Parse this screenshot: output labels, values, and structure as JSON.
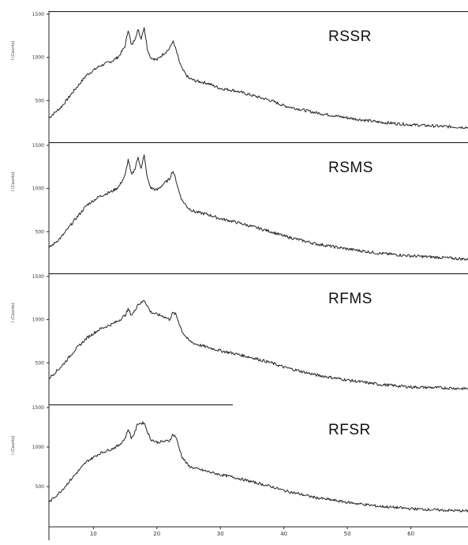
{
  "chart_data": [
    {
      "type": "line",
      "label": "RSSR",
      "ylabel": "I (Counts)",
      "yticks": [
        "1500",
        "1000",
        "500"
      ],
      "ylim": [
        0,
        1500
      ],
      "xlim": [
        3,
        69
      ],
      "x": [
        3,
        5,
        7,
        9,
        11,
        13,
        14,
        15,
        15.5,
        16,
        16.5,
        17,
        17.5,
        18,
        18.5,
        19,
        20,
        21,
        22,
        22.5,
        23,
        23.5,
        24,
        25,
        26,
        28,
        30,
        32,
        35,
        38,
        40,
        45,
        50,
        55,
        60,
        65,
        69
      ],
      "values": [
        300,
        430,
        620,
        800,
        900,
        960,
        1010,
        1130,
        1330,
        1130,
        1210,
        1320,
        1220,
        1350,
        1100,
        1000,
        970,
        1040,
        1100,
        1190,
        1090,
        960,
        860,
        760,
        730,
        700,
        640,
        620,
        560,
        500,
        440,
        360,
        300,
        250,
        220,
        200,
        190
      ]
    },
    {
      "type": "line",
      "label": "RSMS",
      "ylabel": "I (Counts)",
      "yticks": [
        "1500",
        "1000",
        "500"
      ],
      "ylim": [
        0,
        1500
      ],
      "x": [
        3,
        5,
        7,
        9,
        11,
        13,
        14,
        15,
        15.5,
        16,
        16.5,
        17,
        17.5,
        18,
        18.5,
        19,
        20,
        21,
        22,
        22.5,
        23,
        23.5,
        24,
        25,
        26,
        28,
        30,
        32,
        35,
        38,
        40,
        45,
        50,
        55,
        60,
        65,
        69
      ],
      "values": [
        310,
        440,
        630,
        810,
        910,
        970,
        1020,
        1150,
        1340,
        1150,
        1220,
        1360,
        1240,
        1380,
        1120,
        1010,
        980,
        1050,
        1110,
        1210,
        1100,
        960,
        860,
        770,
        730,
        700,
        650,
        620,
        560,
        500,
        450,
        360,
        300,
        250,
        220,
        200,
        180
      ]
    },
    {
      "type": "line",
      "label": "RFMS",
      "ylabel": "I (Counts)",
      "yticks": [
        "1500",
        "1000",
        "500"
      ],
      "ylim": [
        0,
        1500
      ],
      "x": [
        3,
        5,
        7,
        9,
        11,
        13,
        14,
        15,
        15.5,
        16,
        16.5,
        17,
        17.5,
        18,
        18.5,
        19,
        20,
        21,
        22,
        22.5,
        23,
        23.5,
        24,
        25,
        26,
        28,
        30,
        32,
        35,
        38,
        40,
        45,
        50,
        55,
        60,
        65,
        69
      ],
      "values": [
        320,
        460,
        640,
        790,
        890,
        950,
        990,
        1050,
        1120,
        1050,
        1100,
        1180,
        1190,
        1230,
        1160,
        1090,
        1060,
        1040,
        1000,
        1080,
        1060,
        960,
        860,
        760,
        720,
        680,
        640,
        610,
        560,
        500,
        450,
        360,
        300,
        250,
        220,
        210,
        200
      ]
    },
    {
      "type": "line",
      "label": "RFSR",
      "ylabel": "I (Counts)",
      "yticks": [
        "1500",
        "1000",
        "500"
      ],
      "ylim": [
        0,
        1500
      ],
      "xticks": [
        "10",
        "20",
        "30",
        "40",
        "50",
        "60"
      ],
      "x": [
        3,
        5,
        7,
        9,
        11,
        13,
        14,
        15,
        15.5,
        16,
        16.5,
        17,
        17.5,
        18,
        18.5,
        19,
        20,
        21,
        22,
        22.5,
        23,
        23.5,
        24,
        25,
        26,
        28,
        30,
        32,
        35,
        38,
        40,
        45,
        50,
        55,
        60,
        65,
        69
      ],
      "values": [
        300,
        450,
        640,
        820,
        920,
        980,
        1020,
        1110,
        1230,
        1110,
        1180,
        1300,
        1300,
        1310,
        1200,
        1100,
        1060,
        1070,
        1080,
        1160,
        1130,
        990,
        870,
        760,
        730,
        690,
        650,
        620,
        560,
        500,
        450,
        360,
        300,
        250,
        220,
        200,
        190
      ]
    }
  ]
}
